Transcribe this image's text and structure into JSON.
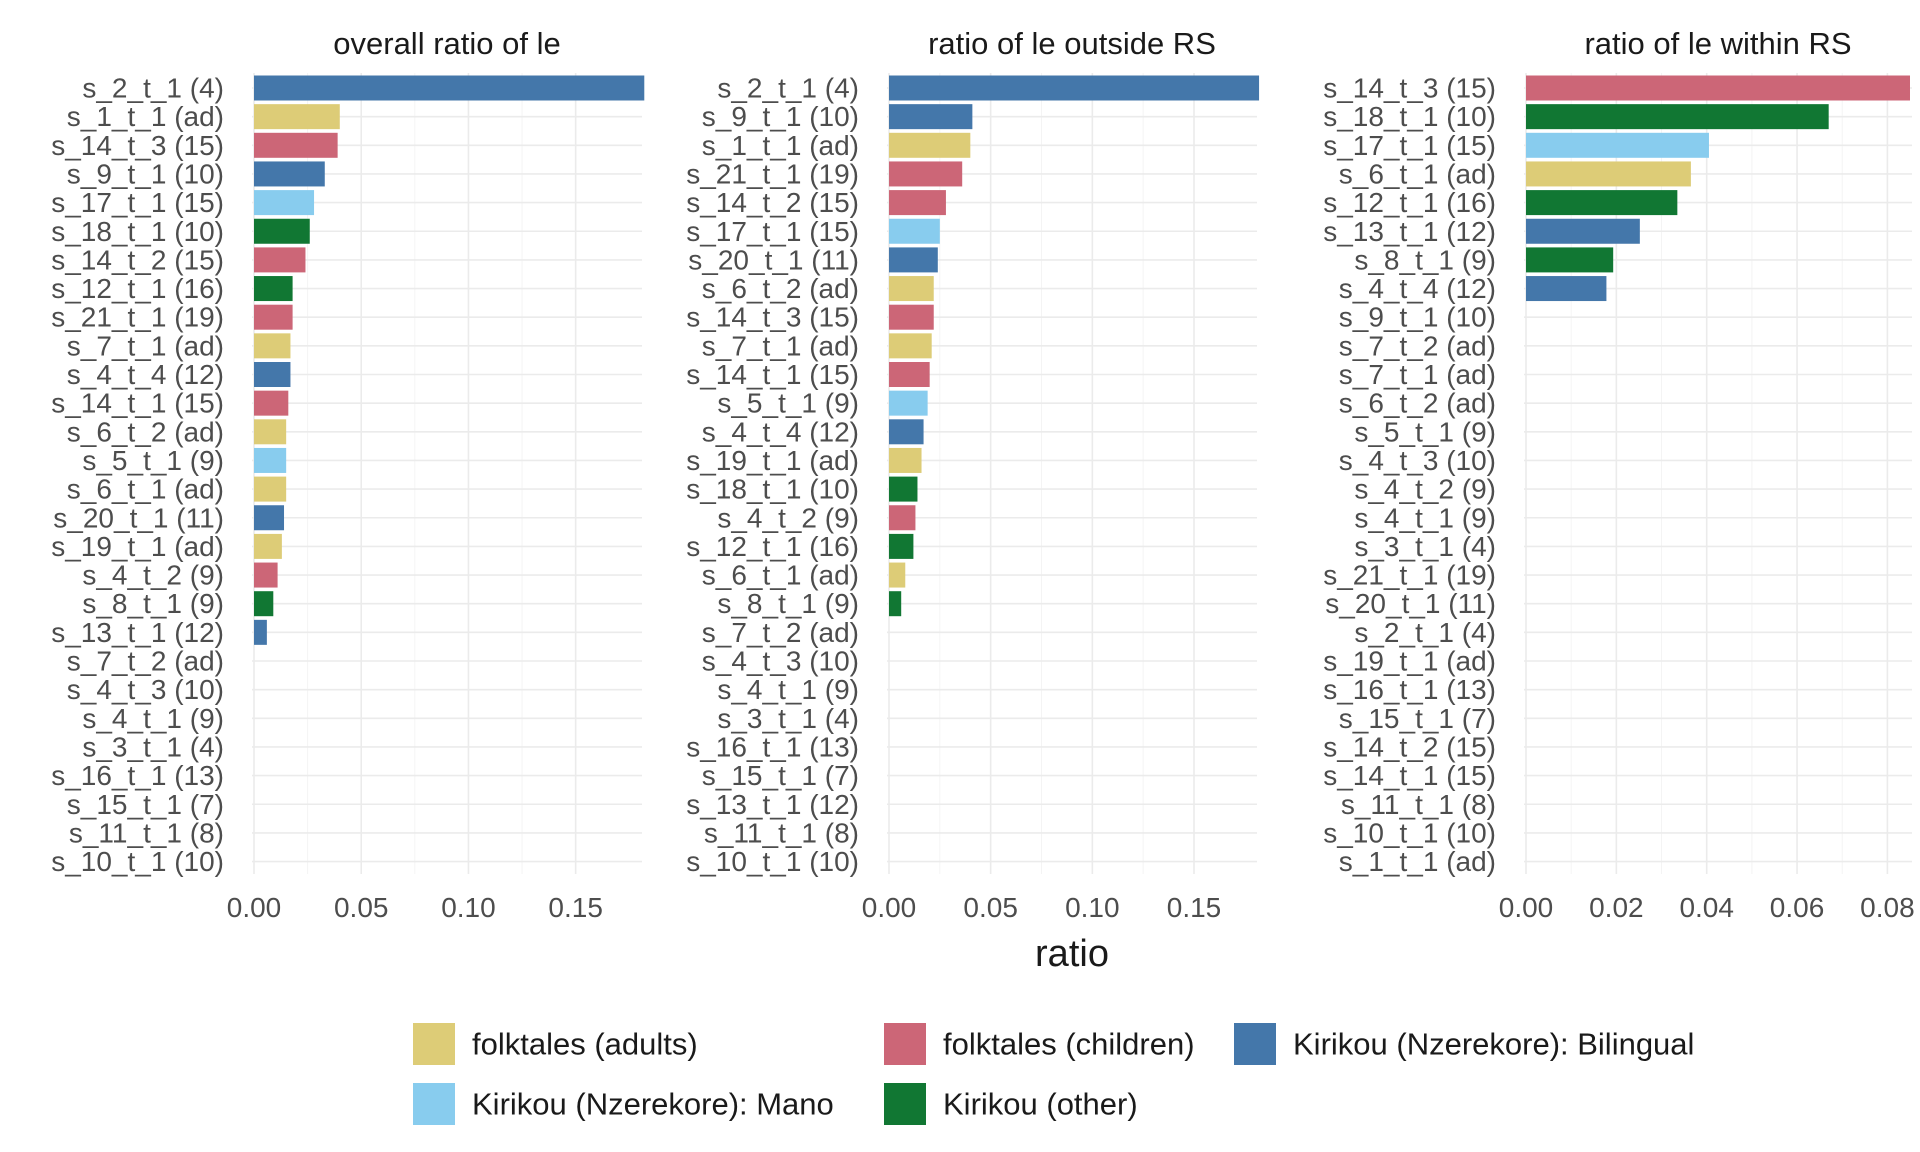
{
  "colors": {
    "folktales_adults": "#DDCC77",
    "folktales_children": "#CC6677",
    "kirikou_bilingual": "#4477AA",
    "kirikou_mano": "#88CCEE",
    "kirikou_other": "#117733"
  },
  "legend": [
    {
      "key": "folktales_adults",
      "label": "folktales (adults)"
    },
    {
      "key": "folktales_children",
      "label": "folktales (children)"
    },
    {
      "key": "kirikou_bilingual",
      "label": "Kirikou (Nzerekore): Bilingual"
    },
    {
      "key": "kirikou_mano",
      "label": "Kirikou (Nzerekore): Mano"
    },
    {
      "key": "kirikou_other",
      "label": "Kirikou (other)"
    }
  ],
  "x_axis_title": "ratio",
  "chart_data": [
    {
      "type": "bar",
      "orientation": "horizontal",
      "title": "overall ratio of le",
      "xlim": [
        0,
        0.18
      ],
      "ticks": [
        0.0,
        0.05,
        0.1,
        0.15
      ],
      "tick_labels": [
        "0.00",
        "0.05",
        "0.10",
        "0.15"
      ],
      "grid": true,
      "categories": [
        "s_2_t_1 (4)",
        "s_1_t_1 (ad)",
        "s_14_t_3 (15)",
        "s_9_t_1 (10)",
        "s_17_t_1 (15)",
        "s_18_t_1 (10)",
        "s_14_t_2 (15)",
        "s_12_t_1 (16)",
        "s_21_t_1 (19)",
        "s_7_t_1 (ad)",
        "s_4_t_4 (12)",
        "s_14_t_1 (15)",
        "s_6_t_2 (ad)",
        "s_5_t_1 (9)",
        "s_6_t_1 (ad)",
        "s_20_t_1 (11)",
        "s_19_t_1 (ad)",
        "s_4_t_2 (9)",
        "s_8_t_1 (9)",
        "s_13_t_1 (12)",
        "s_7_t_2 (ad)",
        "s_4_t_3 (10)",
        "s_4_t_1 (9)",
        "s_3_t_1 (4)",
        "s_16_t_1 (13)",
        "s_15_t_1 (7)",
        "s_11_t_1 (8)",
        "s_10_t_1 (10)"
      ],
      "values": [
        0.182,
        0.04,
        0.039,
        0.033,
        0.028,
        0.026,
        0.024,
        0.018,
        0.018,
        0.017,
        0.017,
        0.016,
        0.015,
        0.015,
        0.015,
        0.014,
        0.013,
        0.011,
        0.009,
        0.006,
        0,
        0,
        0,
        0,
        0,
        0,
        0,
        0
      ],
      "groups": [
        "kirikou_bilingual",
        "folktales_adults",
        "folktales_children",
        "kirikou_bilingual",
        "kirikou_mano",
        "kirikou_other",
        "folktales_children",
        "kirikou_other",
        "folktales_children",
        "folktales_adults",
        "kirikou_bilingual",
        "folktales_children",
        "folktales_adults",
        "kirikou_mano",
        "folktales_adults",
        "kirikou_bilingual",
        "folktales_adults",
        "folktales_children",
        "kirikou_other",
        "kirikou_bilingual",
        "folktales_adults",
        "kirikou_bilingual",
        "kirikou_bilingual",
        "kirikou_bilingual",
        "kirikou_bilingual",
        "kirikou_bilingual",
        "kirikou_bilingual",
        "kirikou_bilingual"
      ]
    },
    {
      "type": "bar",
      "orientation": "horizontal",
      "title": "ratio of le outside RS",
      "xlim": [
        0,
        0.18
      ],
      "ticks": [
        0.0,
        0.05,
        0.1,
        0.15
      ],
      "tick_labels": [
        "0.00",
        "0.05",
        "0.10",
        "0.15"
      ],
      "grid": true,
      "categories": [
        "s_2_t_1 (4)",
        "s_9_t_1 (10)",
        "s_1_t_1 (ad)",
        "s_21_t_1 (19)",
        "s_14_t_2 (15)",
        "s_17_t_1 (15)",
        "s_20_t_1 (11)",
        "s_6_t_2 (ad)",
        "s_14_t_3 (15)",
        "s_7_t_1 (ad)",
        "s_14_t_1 (15)",
        "s_5_t_1 (9)",
        "s_4_t_4 (12)",
        "s_19_t_1 (ad)",
        "s_18_t_1 (10)",
        "s_4_t_2 (9)",
        "s_12_t_1 (16)",
        "s_6_t_1 (ad)",
        "s_8_t_1 (9)",
        "s_7_t_2 (ad)",
        "s_4_t_3 (10)",
        "s_4_t_1 (9)",
        "s_3_t_1 (4)",
        "s_16_t_1 (13)",
        "s_15_t_1 (7)",
        "s_13_t_1 (12)",
        "s_11_t_1 (8)",
        "s_10_t_1 (10)"
      ],
      "values": [
        0.182,
        0.041,
        0.04,
        0.036,
        0.028,
        0.025,
        0.024,
        0.022,
        0.022,
        0.021,
        0.02,
        0.019,
        0.017,
        0.016,
        0.014,
        0.013,
        0.012,
        0.008,
        0.006,
        0,
        0,
        0,
        0,
        0,
        0,
        0,
        0,
        0
      ],
      "groups": [
        "kirikou_bilingual",
        "kirikou_bilingual",
        "folktales_adults",
        "folktales_children",
        "folktales_children",
        "kirikou_mano",
        "kirikou_bilingual",
        "folktales_adults",
        "folktales_children",
        "folktales_adults",
        "folktales_children",
        "kirikou_mano",
        "kirikou_bilingual",
        "folktales_adults",
        "kirikou_other",
        "folktales_children",
        "kirikou_other",
        "folktales_adults",
        "kirikou_other",
        "folktales_adults",
        "kirikou_bilingual",
        "kirikou_bilingual",
        "kirikou_bilingual",
        "kirikou_bilingual",
        "kirikou_bilingual",
        "kirikou_bilingual",
        "kirikou_bilingual",
        "kirikou_bilingual"
      ]
    },
    {
      "type": "bar",
      "orientation": "horizontal",
      "title": "ratio of le within RS",
      "xlim": [
        0,
        0.085
      ],
      "ticks": [
        0.0,
        0.02,
        0.04,
        0.06,
        0.08
      ],
      "tick_labels": [
        "0.00",
        "0.02",
        "0.04",
        "0.06",
        "0.08"
      ],
      "grid": true,
      "categories": [
        "s_14_t_3 (15)",
        "s_18_t_1 (10)",
        "s_17_t_1 (15)",
        "s_6_t_1 (ad)",
        "s_12_t_1 (16)",
        "s_13_t_1 (12)",
        "s_8_t_1 (9)",
        "s_4_t_4 (12)",
        "s_9_t_1 (10)",
        "s_7_t_2 (ad)",
        "s_7_t_1 (ad)",
        "s_6_t_2 (ad)",
        "s_5_t_1 (9)",
        "s_4_t_3 (10)",
        "s_4_t_2 (9)",
        "s_4_t_1 (9)",
        "s_3_t_1 (4)",
        "s_21_t_1 (19)",
        "s_20_t_1 (11)",
        "s_2_t_1 (4)",
        "s_19_t_1 (ad)",
        "s_16_t_1 (13)",
        "s_15_t_1 (7)",
        "s_14_t_2 (15)",
        "s_14_t_1 (15)",
        "s_11_t_1 (8)",
        "s_10_t_1 (10)",
        "s_1_t_1 (ad)"
      ],
      "values": [
        0.085,
        0.067,
        0.0405,
        0.0365,
        0.0335,
        0.0252,
        0.0193,
        0.0178,
        0,
        0,
        0,
        0,
        0,
        0,
        0,
        0,
        0,
        0,
        0,
        0,
        0,
        0,
        0,
        0,
        0,
        0,
        0,
        0
      ],
      "groups": [
        "folktales_children",
        "kirikou_other",
        "kirikou_mano",
        "folktales_adults",
        "kirikou_other",
        "kirikou_bilingual",
        "kirikou_other",
        "kirikou_bilingual",
        "kirikou_bilingual",
        "folktales_adults",
        "folktales_adults",
        "folktales_adults",
        "kirikou_mano",
        "kirikou_bilingual",
        "folktales_children",
        "kirikou_bilingual",
        "kirikou_bilingual",
        "folktales_children",
        "kirikou_bilingual",
        "kirikou_bilingual",
        "folktales_adults",
        "kirikou_bilingual",
        "kirikou_bilingual",
        "folktales_children",
        "folktales_children",
        "kirikou_bilingual",
        "kirikou_bilingual",
        "folktales_adults"
      ]
    }
  ]
}
